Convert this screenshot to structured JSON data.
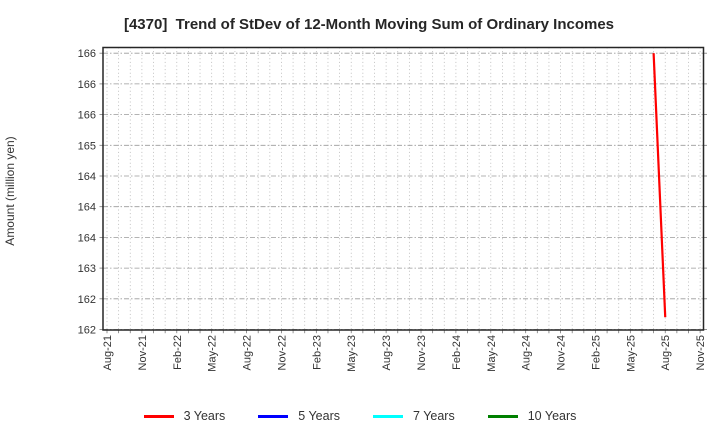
{
  "chart_data": {
    "type": "line",
    "title": "[4370]  Trend of StDev of 12-Month Moving Sum of Ordinary Incomes",
    "xlabel": "",
    "ylabel": "Amount (million yen)",
    "grid": true,
    "legend_position": "bottom",
    "ylim": [
      162.0,
      166.6
    ],
    "y_ticks": [
      {
        "value": 166.5,
        "label": "166"
      },
      {
        "value": 166.0,
        "label": "166"
      },
      {
        "value": 165.5,
        "label": "166"
      },
      {
        "value": 165.0,
        "label": "165"
      },
      {
        "value": 164.5,
        "label": "164"
      },
      {
        "value": 164.0,
        "label": "164"
      },
      {
        "value": 163.5,
        "label": "164"
      },
      {
        "value": 163.0,
        "label": "163"
      },
      {
        "value": 162.5,
        "label": "162"
      },
      {
        "value": 162.0,
        "label": "162"
      }
    ],
    "x_tick_labels": [
      "Aug-21",
      "Nov-21",
      "Feb-22",
      "May-22",
      "Aug-22",
      "Nov-22",
      "Feb-23",
      "May-23",
      "Aug-23",
      "Nov-23",
      "Feb-24",
      "May-24",
      "Aug-24",
      "Nov-24",
      "Feb-25",
      "May-25",
      "Aug-25",
      "Nov-25"
    ],
    "x_month_range": {
      "start": "Aug-21",
      "end": "Nov-25"
    },
    "series": [
      {
        "name": "3 Years",
        "color": "#ff0000",
        "points": [
          {
            "month": "Jul-25",
            "value": 166.5
          },
          {
            "month": "Aug-25",
            "value": 162.2
          }
        ]
      },
      {
        "name": "5 Years",
        "color": "#0000ff",
        "points": []
      },
      {
        "name": "7 Years",
        "color": "#00ffff",
        "points": []
      },
      {
        "name": "10 Years",
        "color": "#008000",
        "points": []
      }
    ],
    "colors": {
      "grid_vertical": "#b3b3b3",
      "grid_horizontal": "#9a9a9a",
      "axis_border": "#262626",
      "tick_mark": "#777777",
      "tick_label": "#333333",
      "title_text": "#262626"
    }
  }
}
